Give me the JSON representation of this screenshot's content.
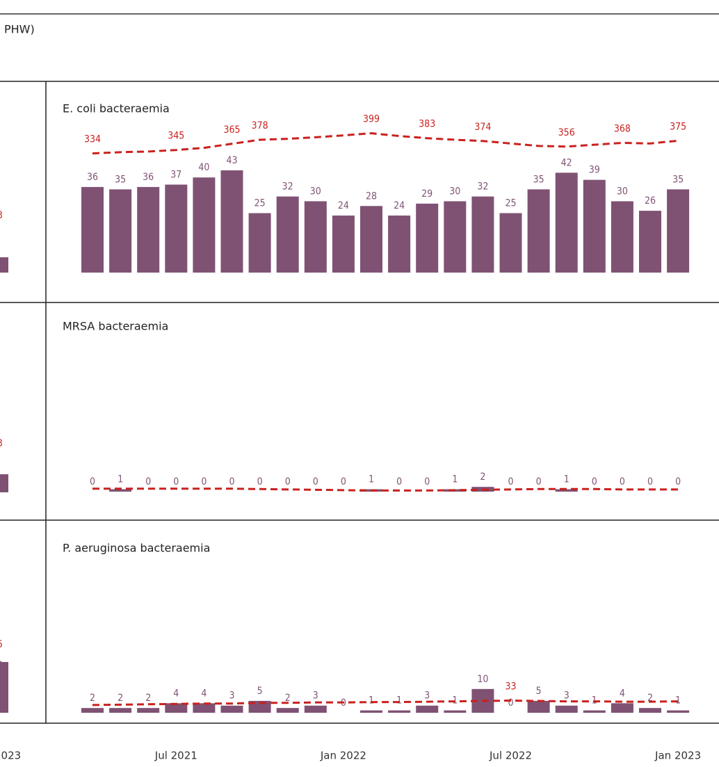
{
  "header": {
    "title_fragment": "PHW)"
  },
  "left_fragments": [
    "3",
    "3",
    "5",
    "3",
    "2023"
  ],
  "chart_data": [
    {
      "type": "bar_line",
      "title": "E. coli bacteraemia",
      "color": "#7f5274",
      "values": [
        36,
        35,
        36,
        37,
        40,
        43,
        25,
        32,
        30,
        24,
        28,
        24,
        29,
        30,
        32,
        25,
        35,
        42,
        39,
        30,
        26,
        35
      ],
      "ylim": [
        0,
        62
      ],
      "y2lim": [
        -50,
        425
      ],
      "line": {
        "axis": "y2",
        "color": "#c9211e",
        "dashed": true,
        "values": [
          334,
          338,
          340,
          345,
          352,
          365,
          378,
          381,
          386,
          392,
          399,
          390,
          383,
          378,
          374,
          366,
          358,
          356,
          362,
          368,
          366,
          375
        ],
        "value_labels": [
          "334",
          null,
          null,
          "345",
          null,
          "365",
          "378",
          null,
          null,
          null,
          "399",
          null,
          "383",
          null,
          "374",
          null,
          null,
          "356",
          null,
          "368",
          null,
          "375"
        ]
      }
    },
    {
      "type": "bar_line",
      "title": "MRSA bacteraemia",
      "color": "#7f5274",
      "values": [
        0,
        1,
        0,
        0,
        0,
        0,
        0,
        0,
        0,
        0,
        1,
        0,
        0,
        1,
        2,
        0,
        0,
        1,
        0,
        0,
        0,
        0
      ],
      "ylim": [
        0,
        62
      ],
      "y2lim": [
        0,
        400
      ],
      "line": {
        "axis": "y2",
        "color": "#c9211e",
        "dashed": true,
        "values": [
          8,
          8,
          8,
          8,
          8,
          8,
          7,
          6,
          5,
          4,
          3,
          3,
          3,
          4,
          5,
          6,
          7,
          7,
          7,
          6,
          6,
          6
        ]
      }
    },
    {
      "type": "bar_line",
      "title": "P. aeruginosa bacteraemia",
      "color": "#7f5274",
      "values": [
        2,
        2,
        2,
        4,
        4,
        3,
        5,
        2,
        3,
        0,
        1,
        1,
        3,
        1,
        10,
        0,
        5,
        3,
        1,
        4,
        2,
        1
      ],
      "ylim": [
        0,
        62
      ],
      "y2lim": [
        0,
        400
      ],
      "categories": [
        null,
        null,
        null,
        "Jul 2021",
        null,
        null,
        null,
        null,
        null,
        "Jan 2022",
        null,
        null,
        null,
        null,
        null,
        "Jul 2022",
        null,
        null,
        null,
        null,
        null,
        "Jan 2023"
      ],
      "line": {
        "axis": "y2",
        "color": "#c9211e",
        "dashed": true,
        "values": [
          21,
          22,
          23,
          24,
          25,
          25,
          27,
          27,
          28,
          28,
          29,
          29,
          30,
          31,
          32,
          33,
          32,
          31,
          31,
          30,
          30,
          31
        ],
        "value_labels": [
          null,
          null,
          null,
          null,
          null,
          null,
          null,
          null,
          null,
          null,
          null,
          null,
          null,
          null,
          null,
          "33",
          null,
          null,
          null,
          null,
          null,
          null
        ]
      }
    }
  ]
}
